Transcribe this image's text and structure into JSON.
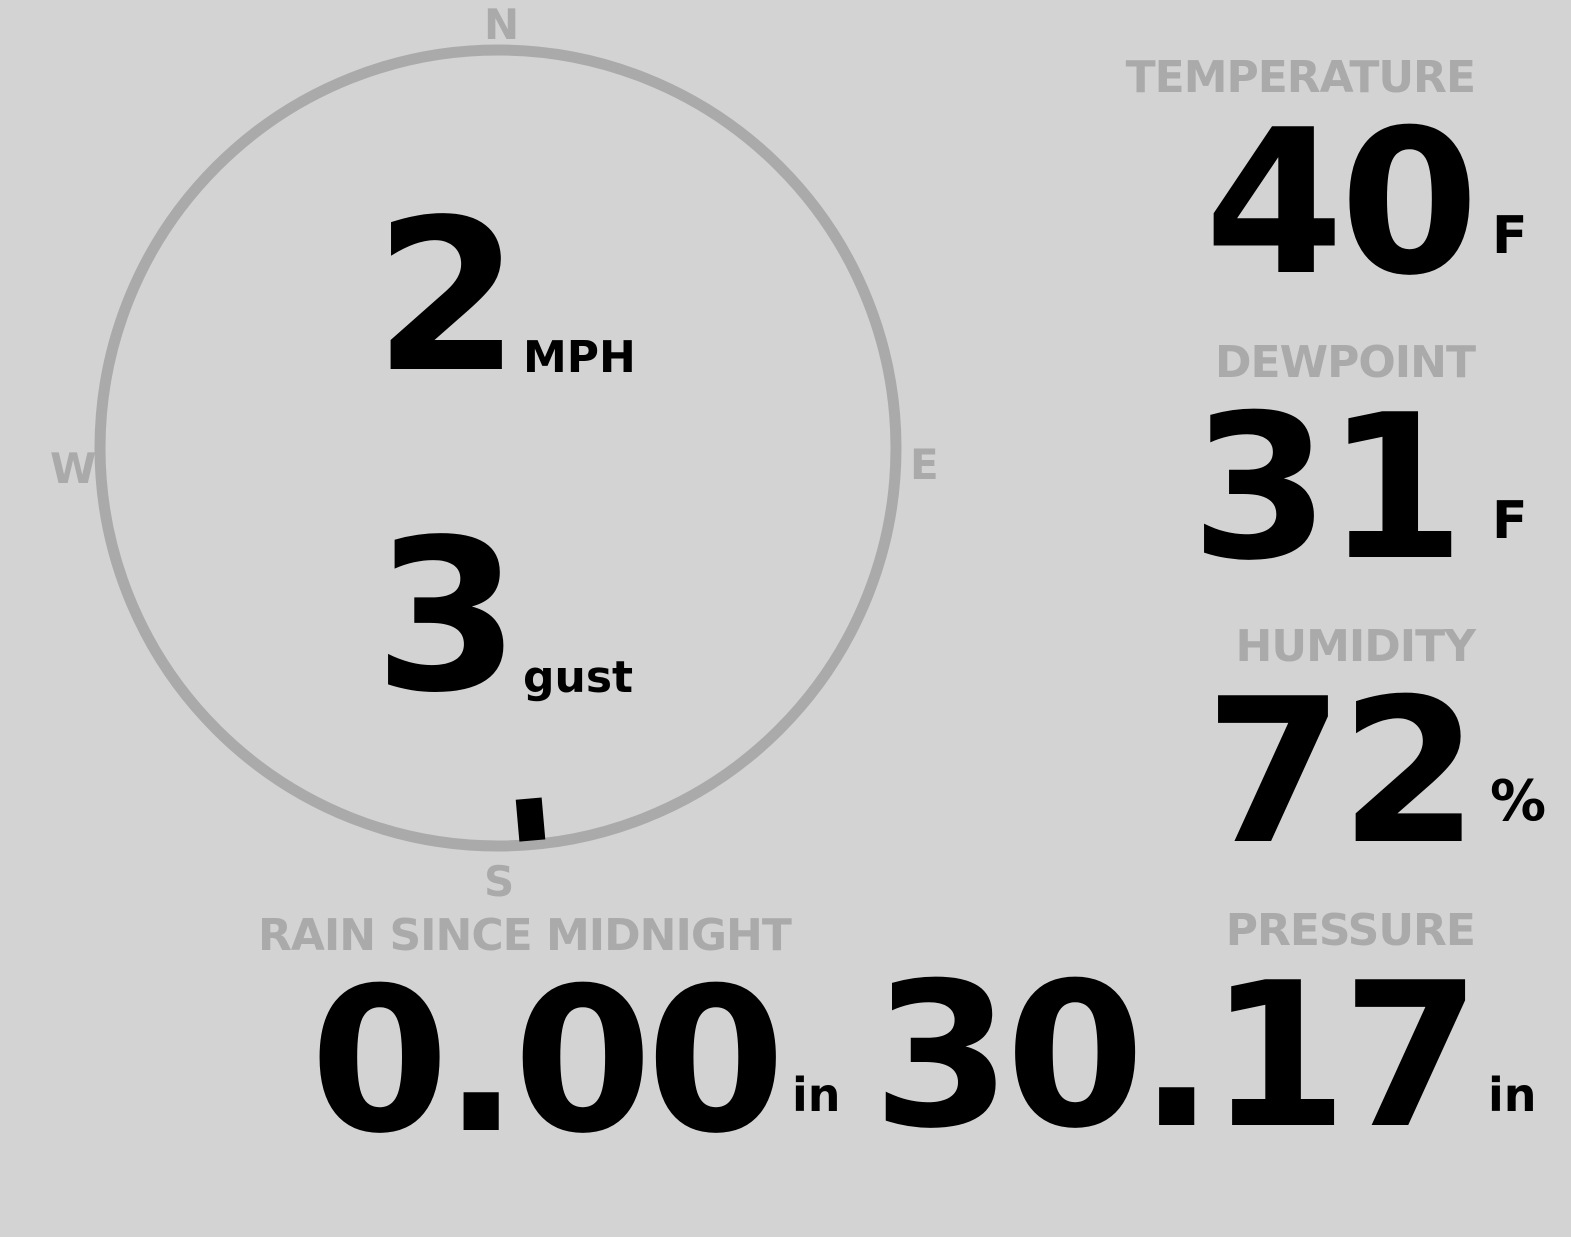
{
  "colors": {
    "background": "#d3d3d3",
    "label": "#aaaaaa",
    "value": "#000000"
  },
  "wind": {
    "compass": {
      "n": "N",
      "e": "E",
      "s": "S",
      "w": "W"
    },
    "speed": "2",
    "speed_unit": "MPH",
    "gust": "3",
    "gust_unit": "gust",
    "direction_deg": 175
  },
  "temperature": {
    "label": "TEMPERATURE",
    "value": "40",
    "unit": "F"
  },
  "dewpoint": {
    "label": "DEWPOINT",
    "value": "31",
    "unit": "F"
  },
  "humidity": {
    "label": "HUMIDITY",
    "value": "72",
    "unit": "%"
  },
  "rain": {
    "label": "RAIN SINCE MIDNIGHT",
    "value": "0.00",
    "unit": "in"
  },
  "pressure": {
    "label": "PRESSURE",
    "value": "30.17",
    "unit": "in"
  }
}
